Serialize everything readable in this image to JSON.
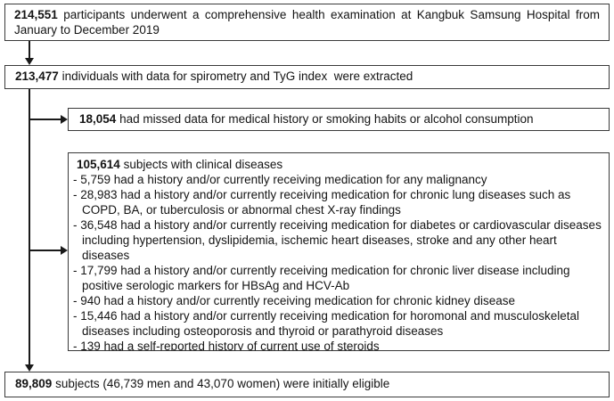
{
  "diagram": {
    "boxes": {
      "participants": {
        "count": "214,551",
        "line1": "participants underwent a comprehensive health examination at Kangbuk Samsung Hospital from",
        "line2": "January to December 2019"
      },
      "extracted": {
        "count": "213,477",
        "text": "individuals with data for spirometry and TyG index  were extracted"
      },
      "missing_data": {
        "count": "18,054",
        "text": "had missed data for medical history or smoking habits or alcohol consumption"
      },
      "clinical_diseases": {
        "count": "105,614",
        "title": "subjects with clinical diseases",
        "lines": [
          {
            "text": "- 5,759 had a history and/or currently receiving medication for any malignancy",
            "indent": false
          },
          {
            "text": "- 28,983 had a history and/or currently receiving medication for chronic lung diseases such as",
            "indent": false
          },
          {
            "text": "COPD, BA, or tuberculosis or abnormal chest X-ray findings",
            "indent": true
          },
          {
            "text": "- 36,548 had a history and/or currently receiving medication for diabetes or cardiovascular diseases",
            "indent": false
          },
          {
            "text": "including hypertension, dyslipidemia, ischemic heart diseases, stroke and any other heart",
            "indent": true
          },
          {
            "text": "diseases",
            "indent": true
          },
          {
            "text": "- 17,799 had a history and/or currently receiving medication for chronic liver disease including",
            "indent": false
          },
          {
            "text": "positive serologic markers for HBsAg and HCV-Ab",
            "indent": true
          },
          {
            "text": "- 940 had a history and/or currently receiving medication for chronic kidney disease",
            "indent": false
          },
          {
            "text": "- 15,446 had a history and/or currently receiving medication for horomonal and musculoskeletal",
            "indent": false
          },
          {
            "text": "diseases including osteoporosis and thyroid or parathyroid diseases",
            "indent": true
          },
          {
            "text": "- 139 had a self-reported history of current use of steroids",
            "indent": false
          }
        ]
      },
      "eligible": {
        "count": "89,809",
        "text": "subjects (46,739 men and 43,070 women) were initially eligible"
      }
    },
    "colors": {
      "border": "#3a3a3a",
      "text": "#141414",
      "arrow": "#1a1a1a",
      "background": "#ffffff"
    }
  }
}
